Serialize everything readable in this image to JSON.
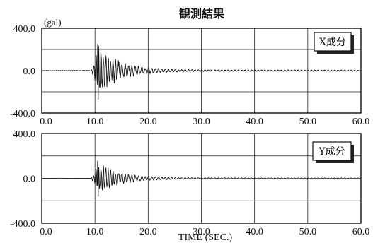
{
  "title": "観測結果",
  "xlabel": "TIME (SEC.)",
  "unit_label": "(gal)",
  "chart_data": [
    {
      "type": "line",
      "series": [
        {
          "name": "X成分"
        }
      ],
      "title": "観測結果",
      "xlabel": "",
      "ylabel": "(gal)",
      "xlim": [
        0,
        60
      ],
      "ylim": [
        -400,
        400
      ],
      "xticks": [
        "0.0",
        "10.0",
        "20.0",
        "30.0",
        "40.0",
        "50.0",
        "60.0"
      ],
      "yticks": [
        "400.0",
        "0.0",
        "-400.0"
      ],
      "peak_positive": 250,
      "peak_negative": -270,
      "peak_time": 10.5,
      "grid": true
    },
    {
      "type": "line",
      "series": [
        {
          "name": "Y成分"
        }
      ],
      "xlabel": "TIME (SEC.)",
      "ylabel": "",
      "xlim": [
        0,
        60
      ],
      "ylim": [
        -400,
        400
      ],
      "xticks": [
        "0.0",
        "10.0",
        "20.0",
        "30.0",
        "40.0",
        "50.0",
        "60.0"
      ],
      "yticks": [
        "400.0",
        "0.0",
        "-400.0"
      ],
      "peak_positive": 155,
      "peak_negative": -160,
      "peak_time": 10.5,
      "grid": true
    }
  ]
}
